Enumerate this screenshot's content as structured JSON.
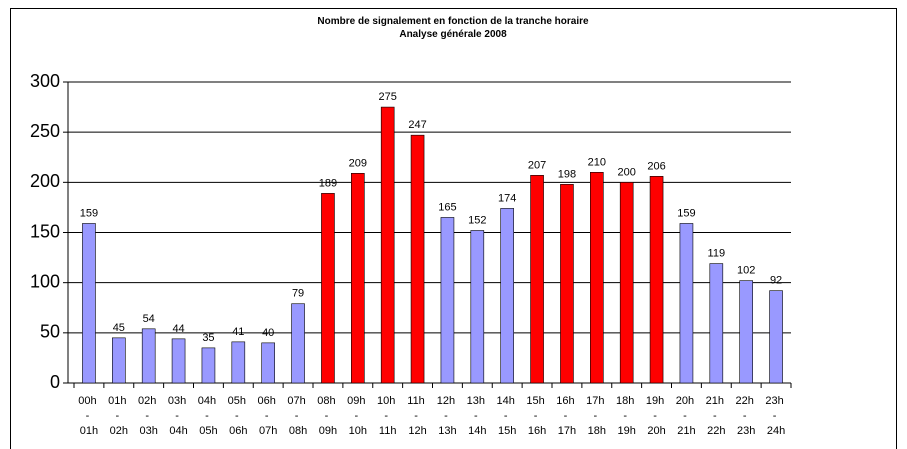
{
  "chart_data": {
    "type": "bar",
    "title": "Nombre de signalement en fonction de la tranche horaire",
    "subtitle": "Analyse générale 2008",
    "categories": [
      "00h - 01h",
      "01h - 02h",
      "02h - 03h",
      "03h - 04h",
      "04h - 05h",
      "05h - 06h",
      "06h - 07h",
      "07h - 08h",
      "08h - 09h",
      "09h - 10h",
      "10h - 11h",
      "11h - 12h",
      "12h - 13h",
      "13h - 14h",
      "14h - 15h",
      "15h - 16h",
      "16h - 17h",
      "17h - 18h",
      "18h - 19h",
      "19h - 20h",
      "20h - 21h",
      "21h - 22h",
      "22h - 23h",
      "23h - 24h"
    ],
    "values": [
      159,
      45,
      54,
      44,
      35,
      41,
      40,
      79,
      189,
      209,
      275,
      247,
      165,
      152,
      174,
      207,
      198,
      210,
      200,
      206,
      159,
      119,
      102,
      92
    ],
    "colors": [
      "#9999ff",
      "#9999ff",
      "#9999ff",
      "#9999ff",
      "#9999ff",
      "#9999ff",
      "#9999ff",
      "#9999ff",
      "#ff0000",
      "#ff0000",
      "#ff0000",
      "#ff0000",
      "#9999ff",
      "#9999ff",
      "#9999ff",
      "#ff0000",
      "#ff0000",
      "#ff0000",
      "#ff0000",
      "#ff0000",
      "#9999ff",
      "#9999ff",
      "#9999ff",
      "#9999ff"
    ],
    "ylim": [
      0,
      300
    ],
    "yticks": [
      0,
      50,
      100,
      150,
      200,
      250,
      300
    ],
    "grid": true
  }
}
